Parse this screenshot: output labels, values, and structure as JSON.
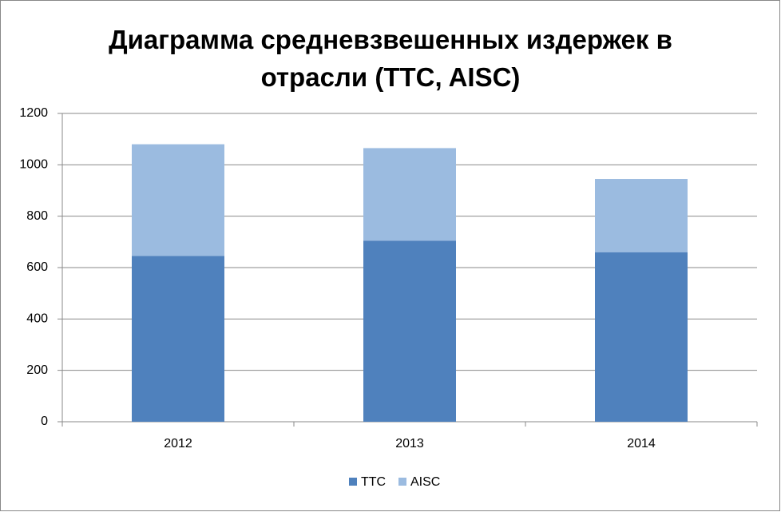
{
  "chart_data": {
    "type": "stacked_bar",
    "title": "Диаграмма средневзвешенных издержек в отрасли (TTC, AISC)",
    "categories": [
      "2012",
      "2013",
      "2014"
    ],
    "series": [
      {
        "name": "TTC",
        "color": "#4f81bd",
        "values": [
          645,
          705,
          660
        ]
      },
      {
        "name": "AISC",
        "color": "#9bbbe0",
        "values": [
          435,
          360,
          285
        ]
      }
    ],
    "ylim": [
      0,
      1200
    ],
    "yticks": [
      0,
      200,
      400,
      600,
      800,
      1000,
      1200
    ],
    "grid": true,
    "legend": "bottom"
  }
}
